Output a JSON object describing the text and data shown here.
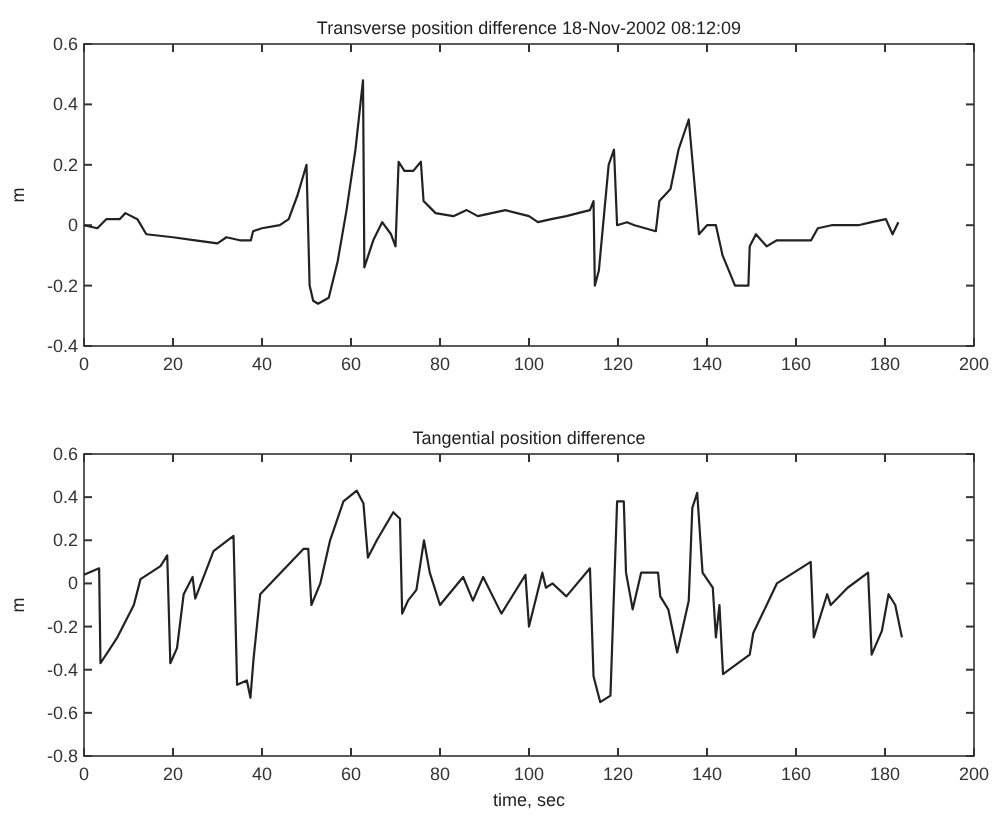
{
  "chart_data": [
    {
      "type": "line",
      "title": "Transverse position difference 18-Nov-2002 08:12:09",
      "ylabel": "m",
      "xlim": [
        0,
        200
      ],
      "xticks": [
        0,
        20,
        40,
        60,
        80,
        100,
        120,
        140,
        160,
        180,
        200
      ],
      "ylim": [
        -0.4,
        0.6
      ],
      "yticks": [
        -0.4,
        -0.2,
        0,
        0.2,
        0.4,
        0.6
      ],
      "grid": false,
      "series": [
        {
          "color": "#222222",
          "x": [
            0,
            3,
            5,
            8,
            9.3,
            12,
            14,
            20,
            25,
            30,
            32,
            35,
            37.5,
            38,
            40,
            44,
            46,
            48,
            50,
            50.7,
            51.5,
            52.6,
            55,
            57,
            59,
            61,
            62.7,
            63,
            65,
            67,
            69,
            70,
            70.7,
            72,
            74,
            75.7,
            76.3,
            79,
            83,
            86,
            88.5,
            94.7,
            100,
            102,
            105,
            108.4,
            111,
            113.7,
            114.5,
            114.8,
            115.7,
            117.9,
            119.1,
            119.8,
            122,
            123.7,
            128.5,
            129.3,
            131.8,
            133.6,
            135.9,
            138.2,
            140,
            142,
            143.5,
            146.3,
            149.3,
            149.6,
            151,
            153.4,
            155.7,
            160,
            163.4,
            164.9,
            168,
            171,
            174,
            177,
            180.2,
            181.7,
            183
          ],
          "values": [
            0,
            -0.01,
            0.02,
            0.02,
            0.04,
            0.02,
            -0.03,
            -0.04,
            -0.05,
            -0.06,
            -0.04,
            -0.05,
            -0.05,
            -0.02,
            -0.01,
            0,
            0.02,
            0.1,
            0.2,
            -0.2,
            -0.25,
            -0.26,
            -0.24,
            -0.12,
            0.05,
            0.25,
            0.48,
            -0.14,
            -0.05,
            0.01,
            -0.03,
            -0.07,
            0.21,
            0.18,
            0.18,
            0.21,
            0.08,
            0.04,
            0.03,
            0.05,
            0.03,
            0.05,
            0.03,
            0.01,
            0.02,
            0.03,
            0.04,
            0.05,
            0.08,
            -0.2,
            -0.15,
            0.2,
            0.25,
            0,
            0.01,
            0,
            -0.02,
            0.08,
            0.12,
            0.25,
            0.35,
            -0.03,
            0,
            0,
            -0.1,
            -0.2,
            -0.2,
            -0.07,
            -0.03,
            -0.07,
            -0.05,
            -0.05,
            -0.05,
            -0.01,
            0,
            0,
            0,
            0.01,
            0.02,
            -0.03,
            0.01
          ]
        }
      ]
    },
    {
      "type": "line",
      "title": "Tangential position difference",
      "xlabel": "time, sec",
      "ylabel": "m",
      "xlim": [
        0,
        200
      ],
      "xticks": [
        0,
        20,
        40,
        60,
        80,
        100,
        120,
        140,
        160,
        180,
        200
      ],
      "ylim": [
        -0.8,
        0.6
      ],
      "yticks": [
        -0.8,
        -0.6,
        -0.4,
        -0.2,
        0,
        0.2,
        0.4,
        0.6
      ],
      "grid": false,
      "series": [
        {
          "color": "#222222",
          "x": [
            0,
            3.4,
            3.7,
            7.5,
            11.2,
            12.7,
            17.2,
            18.7,
            19.4,
            20.9,
            22.4,
            24.4,
            25,
            29.1,
            33.6,
            34.4,
            36.6,
            37.4,
            38.1,
            39.6,
            45.6,
            49.3,
            50.4,
            51.1,
            53.1,
            55.3,
            58.3,
            61.3,
            62.8,
            63.8,
            65.8,
            69.5,
            71,
            71.5,
            72.8,
            74.7,
            76.4,
            77.7,
            80,
            85.2,
            87.4,
            89.7,
            93.8,
            99.2,
            100,
            103,
            103.8,
            105.3,
            108.4,
            113.7,
            114.5,
            116,
            118.3,
            119.8,
            121.3,
            121.8,
            123.3,
            125.2,
            129,
            129.5,
            131.3,
            133.3,
            135.9,
            136.7,
            137.8,
            139,
            141.3,
            142,
            142.8,
            143.6,
            149.6,
            150.4,
            155.7,
            161.8,
            163.3,
            164,
            167,
            167.8,
            171.6,
            176.2,
            177,
            179.3,
            180.8,
            182.3,
            183.8
          ],
          "values": [
            0.04,
            0.07,
            -0.37,
            -0.25,
            -0.1,
            0.02,
            0.08,
            0.13,
            -0.37,
            -0.3,
            -0.05,
            0.03,
            -0.07,
            0.15,
            0.22,
            -0.47,
            -0.45,
            -0.53,
            -0.35,
            -0.05,
            0.08,
            0.16,
            0.16,
            -0.1,
            0,
            0.2,
            0.38,
            0.43,
            0.37,
            0.12,
            0.2,
            0.33,
            0.3,
            -0.14,
            -0.08,
            -0.03,
            0.2,
            0.05,
            -0.1,
            0.03,
            -0.08,
            0.03,
            -0.14,
            0.04,
            -0.2,
            0.05,
            -0.02,
            0,
            -0.06,
            0.07,
            -0.43,
            -0.55,
            -0.52,
            0.38,
            0.38,
            0.05,
            -0.12,
            0.05,
            0.05,
            -0.06,
            -0.12,
            -0.32,
            -0.08,
            0.35,
            0.42,
            0.05,
            -0.02,
            -0.25,
            -0.1,
            -0.42,
            -0.33,
            -0.23,
            0,
            0.08,
            0.1,
            -0.25,
            -0.05,
            -0.1,
            -0.02,
            0.05,
            -0.33,
            -0.22,
            -0.05,
            -0.1,
            -0.25
          ]
        }
      ]
    }
  ]
}
